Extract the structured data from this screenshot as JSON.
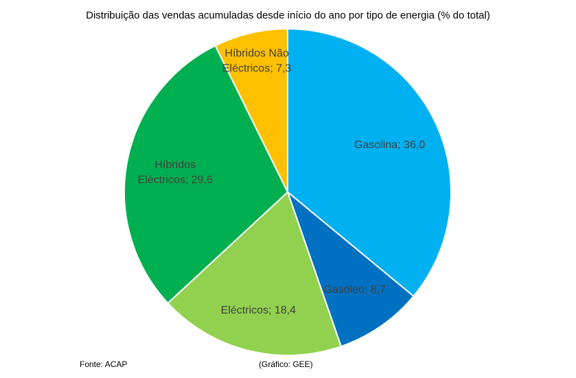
{
  "chart_data": {
    "type": "pie",
    "title": "Distribuição das vendas acumuladas desde início do ano por tipo de energia (% do total)",
    "slices": [
      {
        "name": "Gasolina",
        "value": 36.0,
        "color": "#00B0F0",
        "label_lines": [
          "Gasolina; 36,0"
        ]
      },
      {
        "name": "Gasóleo",
        "value": 8.7,
        "color": "#0070C0",
        "label_lines": [
          "Gasóleo; 8,7"
        ]
      },
      {
        "name": "Eléctricos",
        "value": 18.4,
        "color": "#92D050",
        "label_lines": [
          "Eléctricos; 18,4"
        ]
      },
      {
        "name": "Híbridos Eléctricos",
        "value": 29.6,
        "color": "#00B050",
        "label_lines": [
          "Híbridos",
          "Eléctricos; 29,6"
        ]
      },
      {
        "name": "Híbridos Não Eléctricos",
        "value": 7.3,
        "color": "#FFC000",
        "label_lines": [
          "Híbridos Não",
          "Eléctricos; 7,3"
        ]
      }
    ]
  },
  "footer": {
    "source": "Fonte: ACAP",
    "credit": "(Gráfico: GEE)"
  }
}
